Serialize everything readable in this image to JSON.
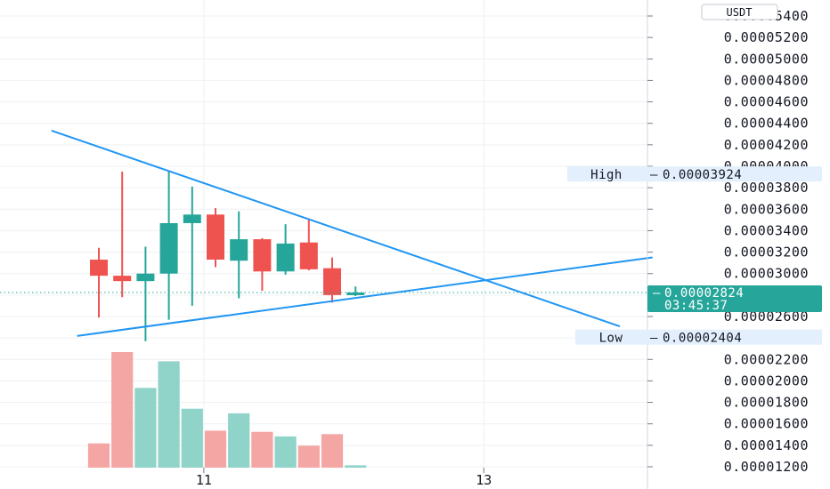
{
  "chart_data": {
    "type": "candlestick",
    "quote_unit": "USDT",
    "y_ticks": [
      "0.00005400",
      "0.00005200",
      "0.00005000",
      "0.00004800",
      "0.00004600",
      "0.00004400",
      "0.00004200",
      "0.00004000",
      "0.00003800",
      "0.00003600",
      "0.00003400",
      "0.00003200",
      "0.00003000",
      "0.00002600",
      "0.00002200",
      "0.00002000",
      "0.00001800",
      "0.00001600",
      "0.00001400",
      "0.00001200"
    ],
    "x_ticks": [
      {
        "label": "11",
        "index": 4.5
      },
      {
        "label": "13",
        "index": 16.5
      }
    ],
    "ylim": [
      1.2e-05,
      5.4e-05
    ],
    "candles": [
      {
        "open": 3.13e-05,
        "high": 3.24e-05,
        "low": 2.59e-05,
        "close": 2.98e-05
      },
      {
        "open": 2.98e-05,
        "high": 3.95e-05,
        "low": 2.78e-05,
        "close": 2.93e-05
      },
      {
        "open": 2.93e-05,
        "high": 3.25e-05,
        "low": 2.37e-05,
        "close": 3e-05
      },
      {
        "open": 3e-05,
        "high": 3.95e-05,
        "low": 2.57e-05,
        "close": 3.47e-05
      },
      {
        "open": 3.47e-05,
        "high": 3.81e-05,
        "low": 2.7e-05,
        "close": 3.55e-05
      },
      {
        "open": 3.55e-05,
        "high": 3.61e-05,
        "low": 3.06e-05,
        "close": 3.13e-05
      },
      {
        "open": 3.12e-05,
        "high": 3.58e-05,
        "low": 2.77e-05,
        "close": 3.32e-05
      },
      {
        "open": 3.32e-05,
        "high": 3.33e-05,
        "low": 2.84e-05,
        "close": 3.02e-05
      },
      {
        "open": 3.02e-05,
        "high": 3.46e-05,
        "low": 2.99e-05,
        "close": 3.28e-05
      },
      {
        "open": 3.29e-05,
        "high": 3.5e-05,
        "low": 3.03e-05,
        "close": 3.04e-05
      },
      {
        "open": 3.05e-05,
        "high": 3.15e-05,
        "low": 2.73e-05,
        "close": 2.8e-05
      },
      {
        "open": 2.8e-05,
        "high": 2.88e-05,
        "low": 2.79e-05,
        "close": 2.824e-05
      }
    ],
    "volume_relative": [
      0.21,
      1.0,
      0.69,
      0.92,
      0.51,
      0.32,
      0.47,
      0.31,
      0.27,
      0.19,
      0.29,
      0.02
    ],
    "trendlines": [
      {
        "from": {
          "index": -2.0,
          "price": 4.33e-05
        },
        "to": {
          "index": 22.3,
          "price": 2.51e-05
        }
      },
      {
        "from": {
          "index": -0.9,
          "price": 2.42e-05
        },
        "to": {
          "index": 23.7,
          "price": 3.15e-05
        }
      }
    ],
    "high": {
      "label": "High",
      "value": "0.00003924"
    },
    "low": {
      "label": "Low",
      "value": "0.00002404"
    },
    "last_price": {
      "value": "0.00002824",
      "countdown": "03:45:37"
    },
    "colors": {
      "up": "#26a69a",
      "down": "#ef5350",
      "up_volume": "#8fd3c9",
      "down_volume": "#f4a6a5",
      "trendline": "#2196f3",
      "last_price": "#26a69a",
      "tag_background": "#e3effd",
      "grid": "#eef0f3"
    }
  }
}
